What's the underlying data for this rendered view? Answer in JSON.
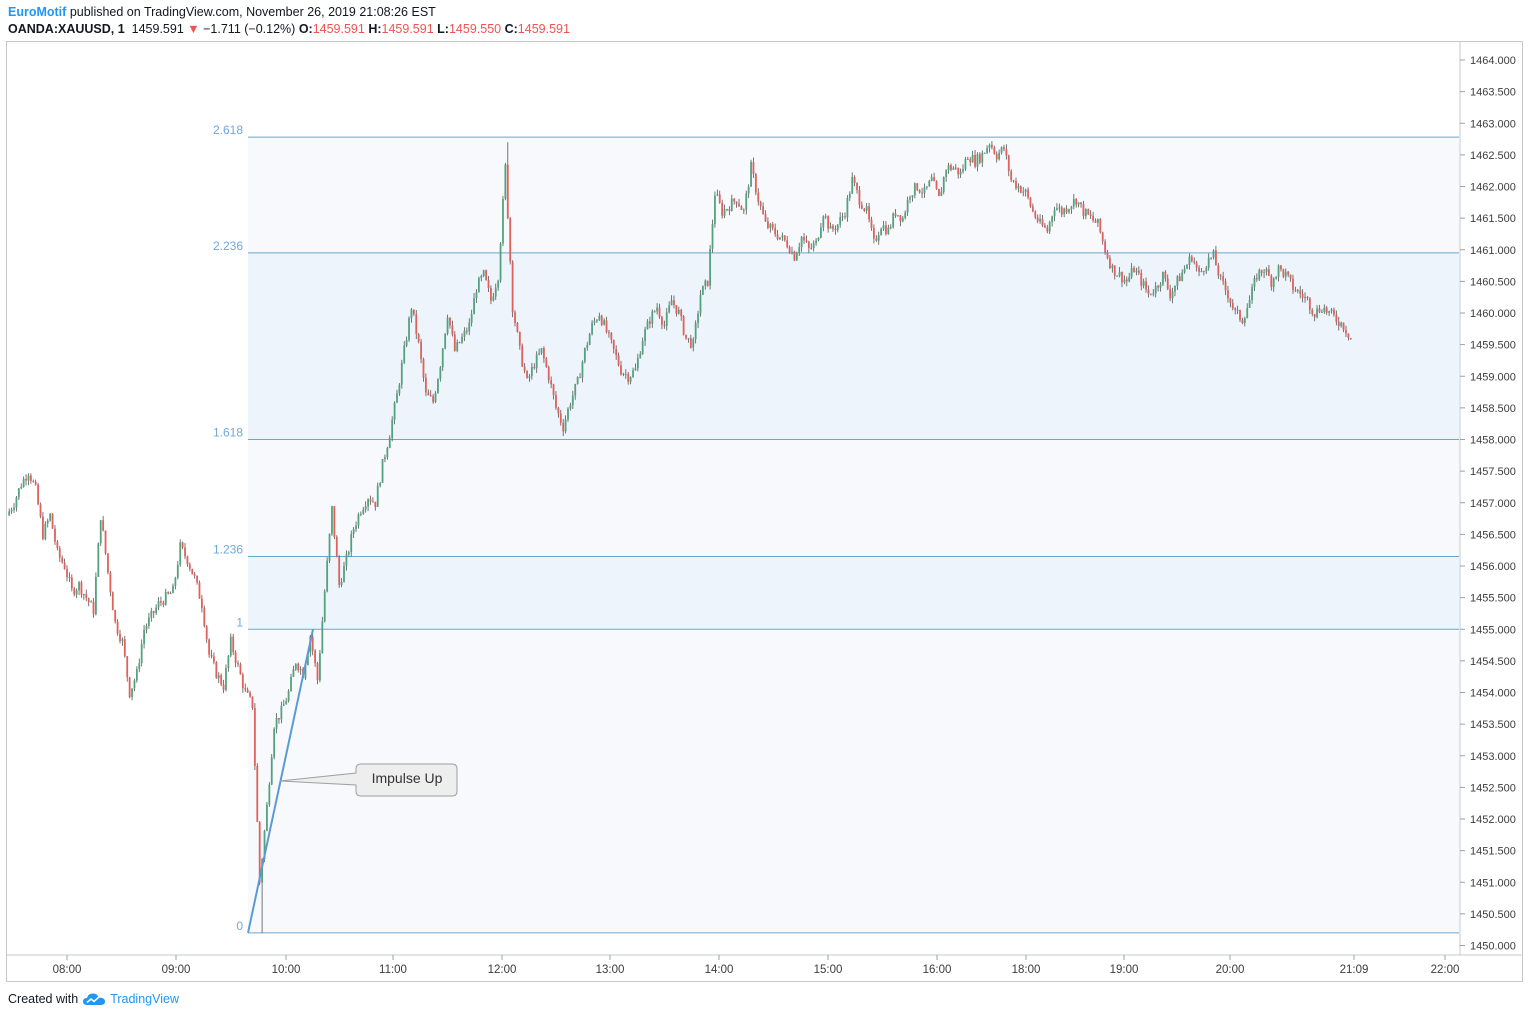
{
  "header": {
    "author": "EuroMotif",
    "published_text": "published on TradingView.com, November 26, 2019 21:08:26 EST",
    "symbol": "OANDA:XAUUSD, 1",
    "last_price": "1459.591",
    "change_arrow": "▼",
    "change": "−1.711 (−0.12%)",
    "o_label": "O:",
    "o_value": "1459.591",
    "h_label": "H:",
    "h_value": "1459.591",
    "l_label": "L:",
    "l_value": "1459.550",
    "c_label": "C:",
    "c_value": "1459.591"
  },
  "footer": {
    "created_with": "Created with",
    "brand": "TradingView",
    "logo_icon": "tradingview-cloud-icon"
  },
  "colors": {
    "up": "#53a27e",
    "down": "#e0605b",
    "fib_line": "#6aa8c9",
    "fib_label": "#6fa8dc",
    "fib_fill": "#eef4fb",
    "trend_line": "#5b9bd5",
    "axis_text": "#3c3c3c"
  },
  "chart_data": {
    "type": "candlestick",
    "symbol": "OANDA:XAUUSD",
    "interval": "1",
    "y_range": [
      1449.9,
      1464.4
    ],
    "y_ticks": [
      "1464.000",
      "1463.500",
      "1463.000",
      "1462.500",
      "1462.000",
      "1461.500",
      "1461.000",
      "1460.500",
      "1460.000",
      "1459.500",
      "1459.000",
      "1458.500",
      "1458.000",
      "1457.500",
      "1457.000",
      "1456.500",
      "1456.000",
      "1455.500",
      "1455.000",
      "1454.500",
      "1454.000",
      "1453.500",
      "1453.000",
      "1452.500",
      "1452.000",
      "1451.500",
      "1451.000",
      "1450.500",
      "1450.000"
    ],
    "x_ticks": [
      "08:00",
      "09:00",
      "10:00",
      "11:00",
      "12:00",
      "13:00",
      "14:00",
      "15:00",
      "16:00",
      "18:00",
      "19:00",
      "20:00",
      "21:09",
      "22:00"
    ],
    "fib_levels": [
      {
        "label": "0",
        "price": 1450.2
      },
      {
        "label": "1",
        "price": 1455.0
      },
      {
        "label": "1.236",
        "price": 1456.15
      },
      {
        "label": "1.618",
        "price": 1458.0
      },
      {
        "label": "2.236",
        "price": 1460.95
      },
      {
        "label": "2.618",
        "price": 1462.78
      }
    ],
    "annotation": {
      "text": "Impulse Up"
    },
    "price_path": [
      [
        1456.8,
        0
      ],
      [
        1457.0,
        1
      ],
      [
        1457.3,
        2
      ],
      [
        1457.5,
        3
      ],
      [
        1457.2,
        4
      ],
      [
        1456.5,
        5
      ],
      [
        1456.8,
        6
      ],
      [
        1456.2,
        7
      ],
      [
        1456.0,
        8
      ],
      [
        1455.6,
        9
      ],
      [
        1455.7,
        10
      ],
      [
        1455.5,
        11
      ],
      [
        1455.3,
        12
      ],
      [
        1456.8,
        13
      ],
      [
        1455.9,
        14
      ],
      [
        1455.1,
        15
      ],
      [
        1454.8,
        16
      ],
      [
        1454.0,
        17
      ],
      [
        1454.3,
        18
      ],
      [
        1455.0,
        19
      ],
      [
        1455.2,
        20
      ],
      [
        1455.4,
        21
      ],
      [
        1455.5,
        22
      ],
      [
        1455.6,
        23
      ],
      [
        1456.3,
        24
      ],
      [
        1456.1,
        25
      ],
      [
        1455.8,
        26
      ],
      [
        1455.4,
        27
      ],
      [
        1454.6,
        28
      ],
      [
        1454.3,
        29
      ],
      [
        1454.1,
        30
      ],
      [
        1454.8,
        31
      ],
      [
        1454.4,
        32
      ],
      [
        1454.0,
        33
      ],
      [
        1453.8,
        34
      ],
      [
        1451.0,
        35
      ],
      [
        1452.2,
        36
      ],
      [
        1453.5,
        37
      ],
      [
        1453.7,
        38
      ],
      [
        1454.0,
        39
      ],
      [
        1454.5,
        40
      ],
      [
        1454.3,
        41
      ],
      [
        1454.9,
        42
      ],
      [
        1454.2,
        43
      ],
      [
        1455.6,
        44
      ],
      [
        1456.9,
        45
      ],
      [
        1455.7,
        46
      ],
      [
        1456.1,
        47
      ],
      [
        1456.6,
        48
      ],
      [
        1456.9,
        49
      ],
      [
        1457.1,
        50
      ],
      [
        1457.0,
        51
      ],
      [
        1457.6,
        52
      ],
      [
        1458.1,
        53
      ],
      [
        1458.7,
        54
      ],
      [
        1459.4,
        55
      ],
      [
        1460.1,
        56
      ],
      [
        1459.5,
        57
      ],
      [
        1458.7,
        58
      ],
      [
        1458.6,
        59
      ],
      [
        1459.2,
        60
      ],
      [
        1460.0,
        61
      ],
      [
        1459.4,
        62
      ],
      [
        1459.6,
        63
      ],
      [
        1459.8,
        64
      ],
      [
        1460.4,
        65
      ],
      [
        1460.6,
        66
      ],
      [
        1460.2,
        67
      ],
      [
        1460.6,
        68
      ],
      [
        1462.3,
        69
      ],
      [
        1460.1,
        70
      ],
      [
        1459.4,
        71
      ],
      [
        1458.9,
        72
      ],
      [
        1459.2,
        73
      ],
      [
        1459.4,
        74
      ],
      [
        1459.0,
        75
      ],
      [
        1458.5,
        76
      ],
      [
        1458.2,
        77
      ],
      [
        1458.6,
        78
      ],
      [
        1458.9,
        79
      ],
      [
        1459.4,
        80
      ],
      [
        1459.8,
        81
      ],
      [
        1460.0,
        82
      ],
      [
        1459.7,
        83
      ],
      [
        1459.4,
        84
      ],
      [
        1459.1,
        85
      ],
      [
        1459.0,
        86
      ],
      [
        1459.1,
        87
      ],
      [
        1459.6,
        88
      ],
      [
        1459.9,
        89
      ],
      [
        1460.1,
        90
      ],
      [
        1459.8,
        91
      ],
      [
        1460.2,
        92
      ],
      [
        1460.0,
        93
      ],
      [
        1459.6,
        94
      ],
      [
        1459.5,
        95
      ],
      [
        1460.3,
        96
      ],
      [
        1460.5,
        97
      ],
      [
        1461.9,
        98
      ],
      [
        1461.6,
        99
      ],
      [
        1461.7,
        100
      ],
      [
        1461.8,
        101
      ],
      [
        1461.6,
        102
      ],
      [
        1462.3,
        103
      ],
      [
        1461.8,
        104
      ],
      [
        1461.4,
        105
      ],
      [
        1461.3,
        106
      ],
      [
        1461.2,
        107
      ],
      [
        1461.1,
        108
      ],
      [
        1460.9,
        109
      ],
      [
        1461.2,
        110
      ],
      [
        1461.0,
        111
      ],
      [
        1461.1,
        112
      ],
      [
        1461.6,
        113
      ],
      [
        1461.3,
        114
      ],
      [
        1461.4,
        115
      ],
      [
        1461.6,
        116
      ],
      [
        1462.1,
        117
      ],
      [
        1461.8,
        118
      ],
      [
        1461.6,
        119
      ],
      [
        1461.1,
        120
      ],
      [
        1461.4,
        121
      ],
      [
        1461.3,
        122
      ],
      [
        1461.6,
        123
      ],
      [
        1461.5,
        124
      ],
      [
        1461.9,
        125
      ],
      [
        1462.0,
        126
      ],
      [
        1461.9,
        127
      ],
      [
        1462.1,
        128
      ],
      [
        1461.8,
        129
      ],
      [
        1462.3,
        130
      ],
      [
        1462.3,
        131
      ],
      [
        1462.2,
        132
      ],
      [
        1462.5,
        133
      ],
      [
        1462.4,
        134
      ],
      [
        1462.5,
        135
      ],
      [
        1462.7,
        136
      ],
      [
        1462.5,
        137
      ],
      [
        1462.6,
        138
      ],
      [
        1462.1,
        139
      ],
      [
        1462.0,
        140
      ],
      [
        1461.9,
        141
      ],
      [
        1461.6,
        142
      ],
      [
        1461.4,
        143
      ],
      [
        1461.3,
        144
      ],
      [
        1461.7,
        145
      ],
      [
        1461.6,
        146
      ],
      [
        1461.7,
        147
      ],
      [
        1461.8,
        148
      ],
      [
        1461.6,
        149
      ],
      [
        1461.5,
        150
      ],
      [
        1461.4,
        151
      ],
      [
        1461.0,
        152
      ],
      [
        1460.7,
        153
      ],
      [
        1460.6,
        154
      ],
      [
        1460.5,
        155
      ],
      [
        1460.7,
        156
      ],
      [
        1460.5,
        157
      ],
      [
        1460.3,
        158
      ],
      [
        1460.4,
        159
      ],
      [
        1460.6,
        160
      ],
      [
        1460.3,
        161
      ],
      [
        1460.5,
        162
      ],
      [
        1460.7,
        163
      ],
      [
        1460.9,
        164
      ],
      [
        1460.6,
        165
      ],
      [
        1460.8,
        166
      ],
      [
        1460.9,
        167
      ],
      [
        1460.5,
        168
      ],
      [
        1460.3,
        169
      ],
      [
        1460.0,
        170
      ],
      [
        1459.9,
        171
      ],
      [
        1460.2,
        172
      ],
      [
        1460.6,
        173
      ],
      [
        1460.7,
        174
      ],
      [
        1460.5,
        175
      ],
      [
        1460.7,
        176
      ],
      [
        1460.6,
        177
      ],
      [
        1460.4,
        178
      ],
      [
        1460.3,
        179
      ],
      [
        1460.2,
        180
      ],
      [
        1460.0,
        181
      ],
      [
        1460.1,
        182
      ],
      [
        1460.0,
        183
      ],
      [
        1459.9,
        184
      ],
      [
        1459.8,
        185
      ],
      [
        1459.6,
        186
      ]
    ]
  }
}
